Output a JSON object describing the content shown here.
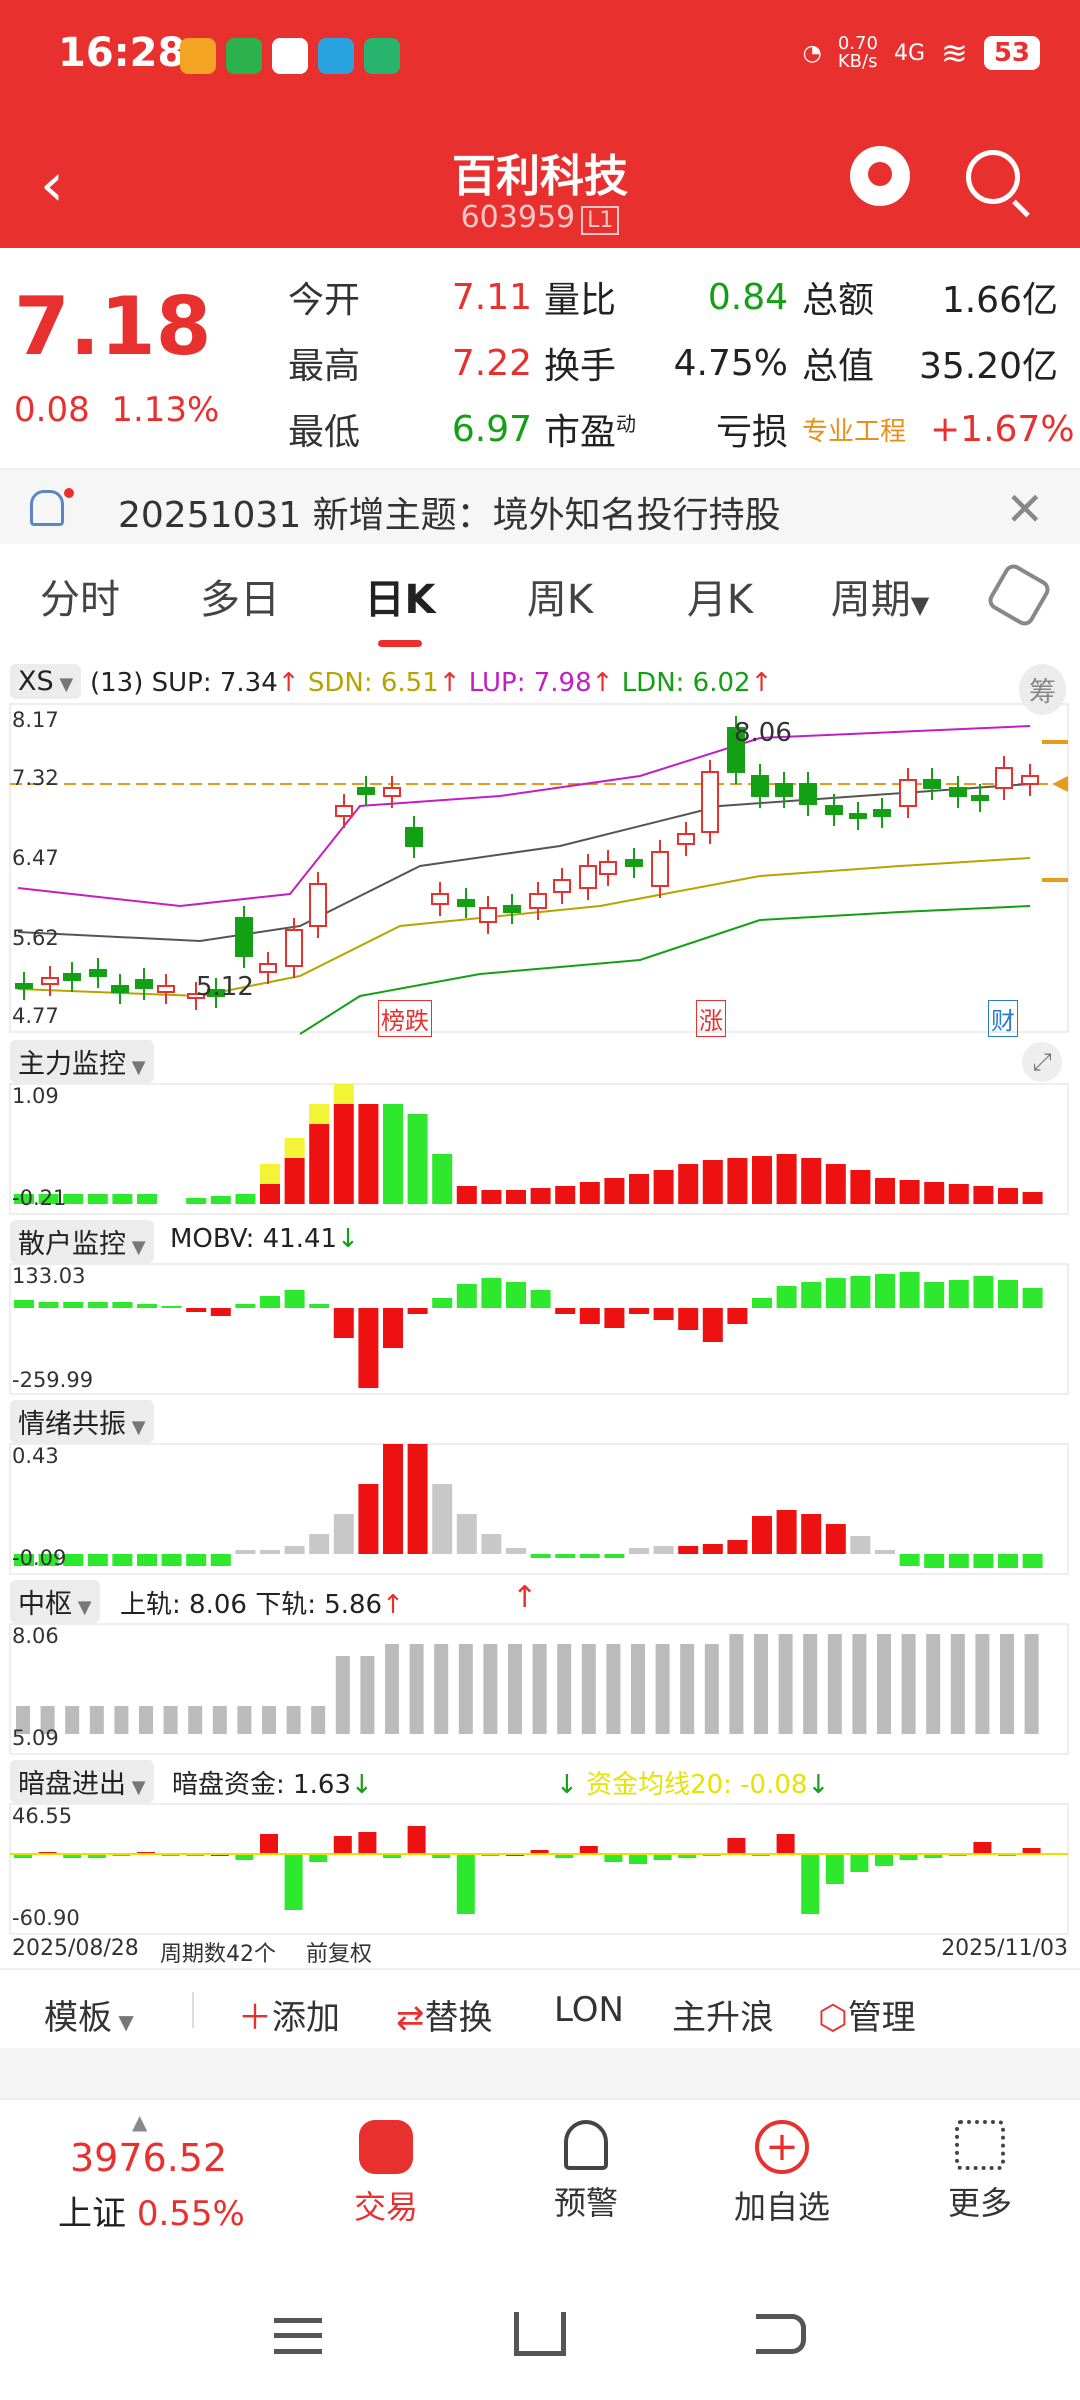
{
  "status": {
    "time": "16:28",
    "speed": "0.70\nKB/s",
    "network": "4G",
    "battery": "53"
  },
  "header": {
    "title": "百利科技",
    "code": "603959",
    "badge": "L1"
  },
  "quote": {
    "price": "7.18",
    "change": "0.08",
    "pct": "1.13%",
    "rows": [
      {
        "k1": "今开",
        "v1": "7.11",
        "k2": "量比",
        "v2": "0.84",
        "k3": "总额",
        "v3": "1.66亿"
      },
      {
        "k1": "最高",
        "v1": "7.22",
        "k2": "换手",
        "v2": "4.75%",
        "k3": "总值",
        "v3": "35.20亿"
      },
      {
        "k1": "最低",
        "v1": "6.97",
        "k2": "市盈",
        "k2sup": "动",
        "v2": "亏损",
        "k3": "专业工程",
        "v3": "+1.67%"
      }
    ]
  },
  "notice": {
    "text": "20251031 新增主题：境外知名投行持股"
  },
  "tabs": [
    "分时",
    "多日",
    "日K",
    "周K",
    "月K",
    "周期"
  ],
  "indicators": {
    "xs": {
      "name": "XS",
      "params": "(13)",
      "sup": "SUP: 7.34",
      "sdn": "SDN: 6.51",
      "lup": "LUP: 7.98",
      "ldn": "LDN: 6.02",
      "chip": "筹"
    },
    "kline_axis": [
      "8.17",
      "7.32",
      "6.47",
      "5.62",
      "4.77"
    ],
    "hi_label": "8.06",
    "lo_label": "5.12",
    "tags": [
      "榜跌",
      "涨",
      "财"
    ],
    "main": {
      "name": "主力监控",
      "top": "1.09",
      "bottom": "-0.21"
    },
    "retail": {
      "name": "散户监控",
      "mobv": "MOBV: 41.41",
      "top": "133.03",
      "bottom": "-259.99"
    },
    "emotion": {
      "name": "情绪共振",
      "top": "0.43",
      "bottom": "-0.09"
    },
    "pivot": {
      "name": "中枢",
      "upper": "上轨: 8.06",
      "lower": "下轨: 5.86",
      "top": "8.06",
      "bottom": "5.09"
    },
    "dark": {
      "name": "暗盘进出",
      "fund": "暗盘资金: 1.63",
      "avg": "资金均线20: -0.08",
      "top": "46.55",
      "bottom": "-60.90"
    },
    "date_start": "2025/08/28",
    "periods": "周期数42个",
    "adj": "前复权",
    "date_end": "2025/11/03"
  },
  "toolbar": {
    "template": "模板",
    "add": "添加",
    "replace": "替换",
    "lon": "LON",
    "main_wave": "主升浪",
    "manage": "管理"
  },
  "tabbar": {
    "index_val": "3976.52",
    "index_name": "上证",
    "index_pct": "0.55%",
    "trade": "交易",
    "alert": "预警",
    "watch": "加自选",
    "more": "更多"
  }
}
